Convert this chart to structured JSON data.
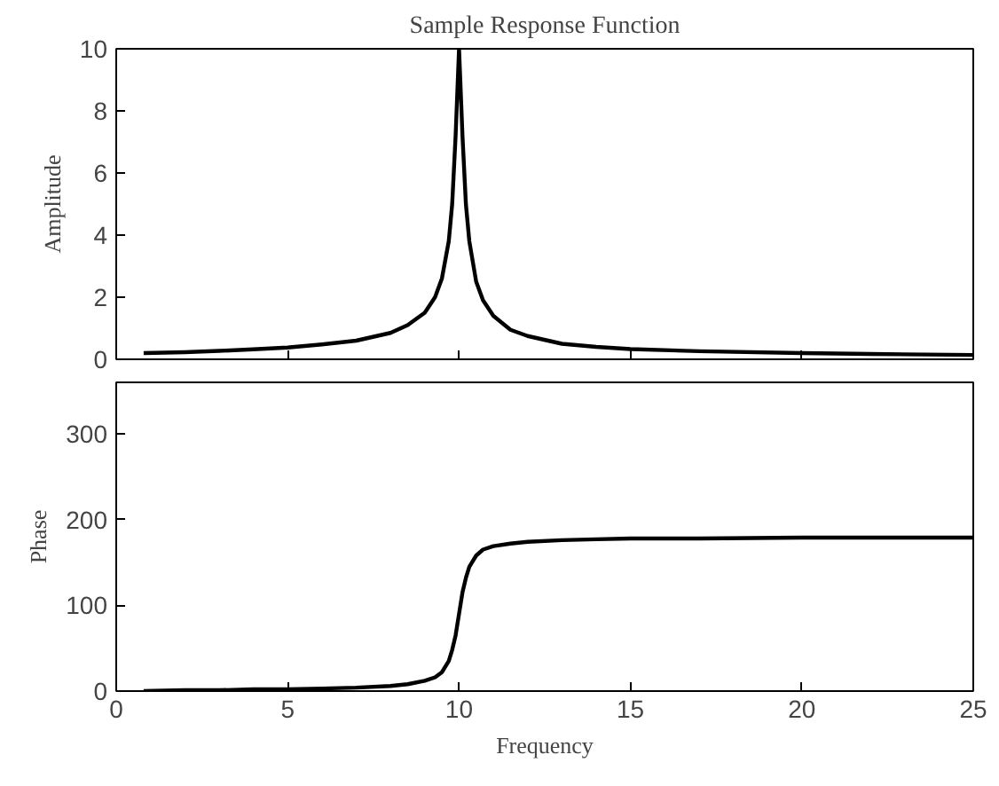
{
  "chart_data": [
    {
      "type": "line",
      "title": "Sample Response Function",
      "ylabel": "Amplitude",
      "xlim": [
        0,
        25
      ],
      "xticks": [
        0,
        5,
        10,
        15,
        20,
        25
      ],
      "ylim": [
        0,
        10
      ],
      "yticks": [
        0,
        2,
        4,
        6,
        8,
        10
      ],
      "tick_labels": "y",
      "series": [
        {
          "color": "#000000",
          "x": [
            0.8,
            2,
            3,
            4,
            5,
            6,
            7,
            8,
            8.5,
            9,
            9.3,
            9.5,
            9.7,
            9.8,
            9.9,
            10,
            10.1,
            10.2,
            10.3,
            10.5,
            10.7,
            11,
            11.5,
            12,
            13,
            14,
            15,
            17,
            20,
            22,
            25
          ],
          "values": [
            0.2,
            0.23,
            0.27,
            0.32,
            0.38,
            0.48,
            0.6,
            0.85,
            1.1,
            1.5,
            2.0,
            2.6,
            3.8,
            5.0,
            7.2,
            10,
            7.2,
            5.0,
            3.8,
            2.5,
            1.9,
            1.4,
            0.95,
            0.75,
            0.5,
            0.4,
            0.33,
            0.26,
            0.2,
            0.17,
            0.14
          ]
        }
      ]
    },
    {
      "type": "line",
      "xlabel": "Frequency",
      "ylabel": "Phase",
      "xlim": [
        0,
        25
      ],
      "xticks": [
        0,
        5,
        10,
        15,
        20,
        25
      ],
      "ylim": [
        0,
        360
      ],
      "yticks": [
        0,
        100,
        200,
        300
      ],
      "series": [
        {
          "color": "#000000",
          "x": [
            0.8,
            2,
            3,
            4,
            5,
            6,
            7,
            8,
            8.5,
            9,
            9.3,
            9.5,
            9.7,
            9.8,
            9.9,
            10,
            10.1,
            10.2,
            10.3,
            10.5,
            10.7,
            11,
            11.5,
            12,
            13,
            14,
            15,
            17,
            20,
            22,
            25
          ],
          "values": [
            0,
            1,
            1,
            2,
            2,
            3,
            4,
            6,
            8,
            12,
            16,
            22,
            35,
            48,
            65,
            90,
            115,
            132,
            145,
            158,
            165,
            169,
            172,
            174,
            176,
            177,
            178,
            178,
            179,
            179,
            179
          ]
        }
      ]
    }
  ]
}
